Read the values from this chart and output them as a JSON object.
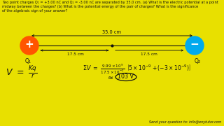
{
  "bg_color": "#E8E000",
  "title_text": "Two point charges Q₁ = +3.00 nC and Q₂ = -3.00 nC are separated by 35.0 cm. (a) What is the electric potential at a point\nmidway between the charges? (b) What is the potential energy of the pair of charges? What is the significance\nof the algebraic sign of your answer?",
  "distance_label": "35.0 cm",
  "q1_label": "Q₁",
  "q2_label": "Q₂",
  "q1_sign": "+",
  "q2_sign": "−",
  "q1_color": "#FF5500",
  "q2_color": "#00AAEE",
  "half_dist_left": "17.5 cm",
  "half_dist_right": "17.5 cm",
  "footer": "Send your question to: info@enytutor.com",
  "text_color": "#111111",
  "approx_val": "103 V"
}
